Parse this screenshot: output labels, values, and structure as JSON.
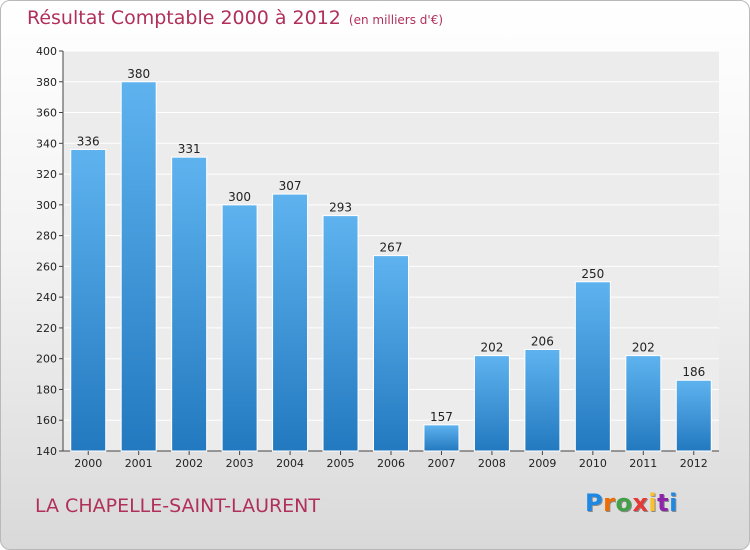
{
  "header": {
    "title": "Résultat Comptable 2000 à 2012",
    "subtitle": "(en milliers d'€)"
  },
  "footer": {
    "place": "LA CHAPELLE-SAINT-LAURENT",
    "logo": [
      "P",
      "r",
      "o",
      "x",
      "i",
      "t",
      "i"
    ],
    "logo_colors": [
      "#1e88e5",
      "#ef6c00",
      "#43a047",
      "#e53935",
      "#fbc02d",
      "#8e24aa",
      "#1e88e5"
    ]
  },
  "chart_data": {
    "type": "bar",
    "title": "Résultat Comptable 2000 à 2012",
    "subtitle": "(en milliers d'€)",
    "categories": [
      "2000",
      "2001",
      "2002",
      "2003",
      "2004",
      "2005",
      "2006",
      "2007",
      "2008",
      "2009",
      "2010",
      "2011",
      "2012"
    ],
    "values": [
      336,
      380,
      331,
      300,
      307,
      293,
      267,
      157,
      202,
      206,
      250,
      202,
      186
    ],
    "ylim": [
      140,
      400
    ],
    "yticks": [
      140,
      160,
      180,
      200,
      220,
      240,
      260,
      280,
      300,
      320,
      340,
      360,
      380,
      400
    ],
    "grid": true,
    "bar_color": "#3d9ae2"
  }
}
